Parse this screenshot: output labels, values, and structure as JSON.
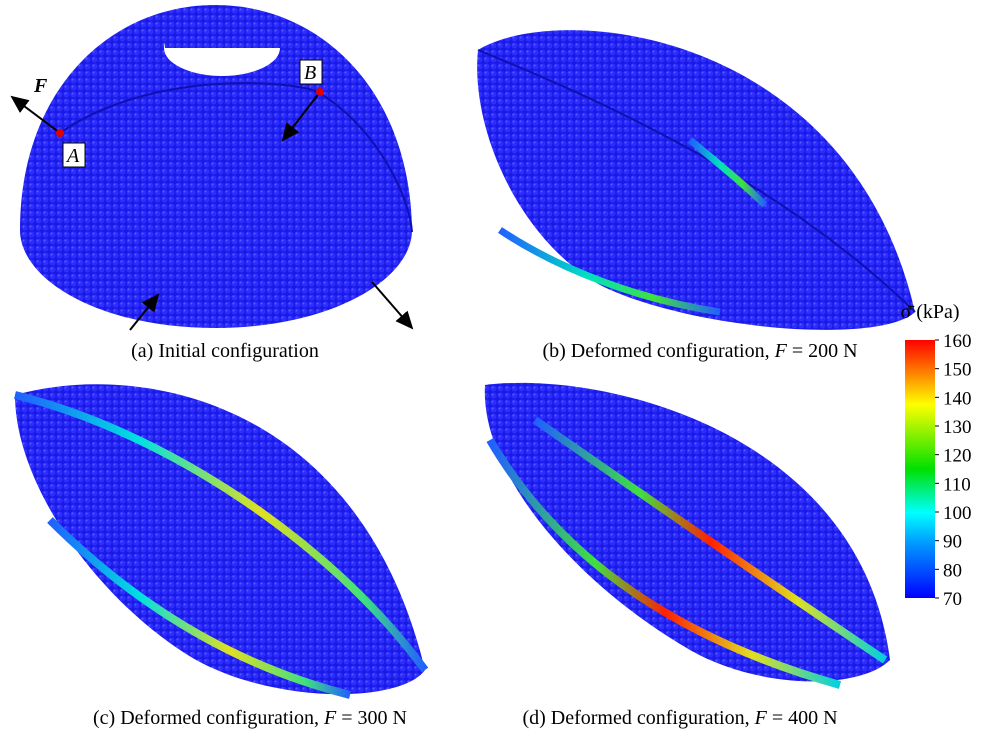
{
  "panels": [
    {
      "caption": "(a) Initial configuration",
      "force_label": "F",
      "point_a": "A",
      "point_b": "B"
    },
    {
      "caption_prefix": "(b) Deformed configuration, ",
      "caption_symbol": "F",
      "caption_suffix": " = 200 N"
    },
    {
      "caption_prefix": "(c) Deformed configuration, ",
      "caption_symbol": "F",
      "caption_suffix": " = 300 N"
    },
    {
      "caption_prefix": "(d) Deformed configuration, ",
      "caption_symbol": "F",
      "caption_suffix": " = 400 N"
    }
  ],
  "colorbar": {
    "label": "σ̄ (kPa)",
    "range": [
      70,
      160
    ],
    "ticks": [
      70,
      80,
      90,
      100,
      110,
      120,
      130,
      140,
      150,
      160
    ]
  }
}
